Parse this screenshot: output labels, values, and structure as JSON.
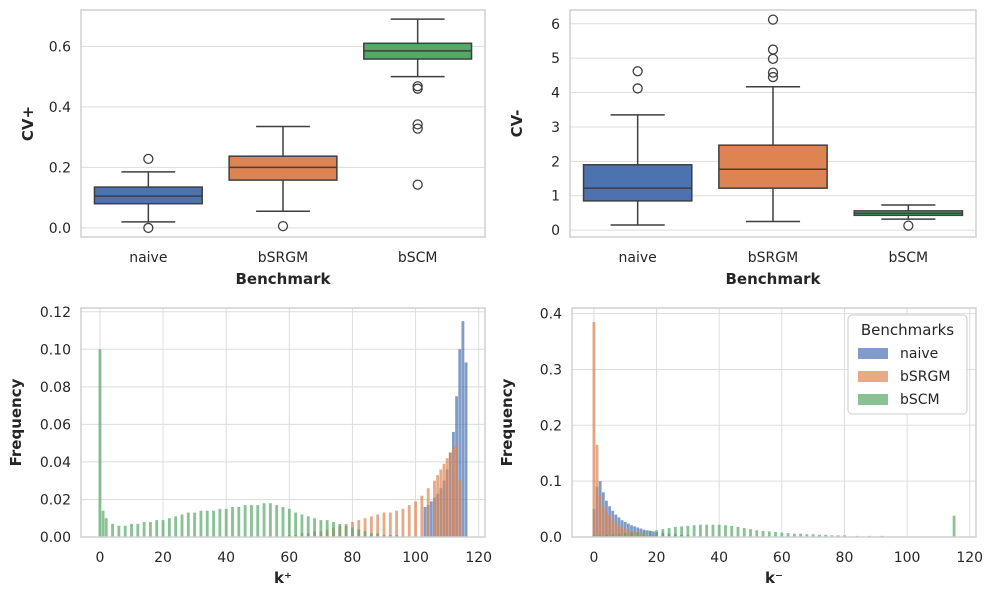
{
  "chart_data": [
    {
      "id": "cv-plus",
      "type": "box",
      "xlabel": "Benchmark",
      "ylabel": "CV+",
      "ylim": [
        -0.03,
        0.72
      ],
      "yticks": [
        "0.0",
        "0.2",
        "0.4",
        "0.6"
      ],
      "ytick_values": [
        0,
        0.2,
        0.4,
        0.6
      ],
      "categories": [
        "naive",
        "bSRGM",
        "bSCM"
      ],
      "boxes": [
        {
          "category": "naive",
          "whislo": 0.02,
          "q1": 0.08,
          "med": 0.105,
          "q3": 0.135,
          "whishi": 0.185,
          "color": "#4c72b0",
          "fliers": [
            0.228,
            0.0
          ]
        },
        {
          "category": "bSRGM",
          "whislo": 0.055,
          "q1": 0.158,
          "med": 0.2,
          "q3": 0.237,
          "whishi": 0.335,
          "color": "#dd8452",
          "fliers": [
            0.006
          ]
        },
        {
          "category": "bSCM",
          "whislo": 0.5,
          "q1": 0.558,
          "med": 0.585,
          "q3": 0.61,
          "whishi": 0.69,
          "color": "#55a868",
          "fliers": [
            0.468,
            0.46,
            0.342,
            0.328,
            0.143
          ]
        }
      ]
    },
    {
      "id": "cv-minus",
      "type": "box",
      "xlabel": "Benchmark",
      "ylabel": "CV-",
      "ylim": [
        -0.2,
        6.4
      ],
      "yticks": [
        "0",
        "1",
        "2",
        "3",
        "4",
        "5",
        "6"
      ],
      "ytick_values": [
        0,
        1,
        2,
        3,
        4,
        5,
        6
      ],
      "categories": [
        "naive",
        "bSRGM",
        "bSCM"
      ],
      "boxes": [
        {
          "category": "naive",
          "whislo": 0.15,
          "q1": 0.85,
          "med": 1.22,
          "q3": 1.9,
          "whishi": 3.35,
          "color": "#4c72b0",
          "fliers": [
            4.12,
            4.62
          ]
        },
        {
          "category": "bSRGM",
          "whislo": 0.25,
          "q1": 1.22,
          "med": 1.77,
          "q3": 2.47,
          "whishi": 4.17,
          "color": "#dd8452",
          "fliers": [
            4.45,
            4.58,
            4.98,
            5.25,
            6.12
          ]
        },
        {
          "category": "bSCM",
          "whislo": 0.32,
          "q1": 0.43,
          "med": 0.49,
          "q3": 0.56,
          "whishi": 0.73,
          "color": "#55a868",
          "fliers": [
            0.13
          ]
        }
      ]
    },
    {
      "id": "k-plus-hist",
      "type": "histogram",
      "xlabel": "k⁺",
      "ylabel": "Frequency",
      "xlim": [
        -6,
        122
      ],
      "ylim": [
        0,
        0.122
      ],
      "xticks": [
        "0",
        "20",
        "40",
        "60",
        "80",
        "100",
        "120"
      ],
      "xtick_values": [
        0,
        20,
        40,
        60,
        80,
        100,
        120
      ],
      "yticks": [
        "0.00",
        "0.02",
        "0.04",
        "0.06",
        "0.08",
        "0.10",
        "0.12"
      ],
      "ytick_values": [
        0,
        0.02,
        0.04,
        0.06,
        0.08,
        0.1,
        0.12
      ],
      "series": [
        {
          "name": "naive",
          "color": "#4c72b0",
          "x": [
            103,
            104,
            105,
            106,
            107,
            108,
            109,
            110,
            111,
            112,
            113,
            114,
            115,
            116
          ],
          "values": [
            0.016,
            0.017,
            0.019,
            0.021,
            0.023,
            0.026,
            0.03,
            0.036,
            0.045,
            0.056,
            0.075,
            0.1,
            0.115,
            0.093
          ]
        },
        {
          "name": "bSRGM",
          "color": "#dd8452",
          "x": [
            60,
            62,
            64,
            66,
            68,
            70,
            72,
            74,
            76,
            78,
            80,
            82,
            84,
            86,
            88,
            90,
            92,
            94,
            96,
            98,
            100,
            102,
            104,
            106,
            107,
            108,
            109,
            110,
            111,
            112,
            113,
            114
          ],
          "values": [
            0.001,
            0.001,
            0.002,
            0.002,
            0.003,
            0.003,
            0.004,
            0.005,
            0.006,
            0.007,
            0.008,
            0.009,
            0.01,
            0.011,
            0.012,
            0.013,
            0.013,
            0.014,
            0.015,
            0.017,
            0.019,
            0.022,
            0.026,
            0.03,
            0.033,
            0.036,
            0.039,
            0.042,
            0.045,
            0.048,
            0.049,
            0.03
          ]
        },
        {
          "name": "bSCM",
          "color": "#55a868",
          "x": [
            0,
            1,
            2,
            4,
            6,
            8,
            10,
            12,
            14,
            16,
            18,
            20,
            22,
            24,
            26,
            28,
            30,
            32,
            34,
            36,
            38,
            40,
            42,
            44,
            46,
            48,
            50,
            52,
            54,
            56,
            58,
            60,
            62,
            64,
            66,
            68,
            70,
            72,
            74,
            76,
            78,
            80,
            82,
            84,
            86,
            88,
            90,
            92,
            94,
            96
          ],
          "values": [
            0.1,
            0.014,
            0.01,
            0.007,
            0.006,
            0.006,
            0.007,
            0.007,
            0.008,
            0.008,
            0.009,
            0.009,
            0.01,
            0.011,
            0.012,
            0.013,
            0.013,
            0.014,
            0.014,
            0.014,
            0.015,
            0.015,
            0.016,
            0.016,
            0.017,
            0.017,
            0.017,
            0.018,
            0.018,
            0.017,
            0.016,
            0.015,
            0.013,
            0.012,
            0.011,
            0.01,
            0.009,
            0.009,
            0.008,
            0.007,
            0.006,
            0.005,
            0.004,
            0.003,
            0.002,
            0.002,
            0.001,
            0.001,
            0.001,
            0.0005
          ]
        }
      ]
    },
    {
      "id": "k-minus-hist",
      "type": "histogram",
      "xlabel": "k⁻",
      "ylabel": "Frequency",
      "xlim": [
        -7,
        122
      ],
      "ylim": [
        0,
        0.41
      ],
      "xticks": [
        "0",
        "20",
        "40",
        "60",
        "80",
        "100",
        "120"
      ],
      "xtick_values": [
        0,
        20,
        40,
        60,
        80,
        100,
        120
      ],
      "yticks": [
        "0.0",
        "0.1",
        "0.2",
        "0.3",
        "0.4"
      ],
      "ytick_values": [
        0,
        0.1,
        0.2,
        0.3,
        0.4
      ],
      "series": [
        {
          "name": "naive",
          "color": "#4c72b0",
          "x": [
            0,
            1,
            2,
            3,
            4,
            5,
            6,
            7,
            8,
            9,
            10,
            11,
            12,
            13,
            14,
            15,
            16,
            17,
            18,
            19,
            20,
            22,
            24,
            26,
            28,
            30
          ],
          "values": [
            0.05,
            0.09,
            0.1,
            0.08,
            0.065,
            0.055,
            0.047,
            0.04,
            0.035,
            0.03,
            0.027,
            0.024,
            0.021,
            0.019,
            0.017,
            0.015,
            0.013,
            0.012,
            0.011,
            0.01,
            0.009,
            0.007,
            0.006,
            0.005,
            0.004,
            0.003
          ]
        },
        {
          "name": "bSRGM",
          "color": "#dd8452",
          "x": [
            0,
            1,
            2,
            3,
            4,
            5,
            6,
            7,
            8,
            9,
            10,
            11,
            12,
            13,
            14,
            15,
            16,
            18,
            20,
            22
          ],
          "values": [
            0.385,
            0.165,
            0.075,
            0.055,
            0.045,
            0.038,
            0.03,
            0.025,
            0.02,
            0.017,
            0.014,
            0.012,
            0.01,
            0.009,
            0.008,
            0.007,
            0.006,
            0.004,
            0.003,
            0.002
          ]
        },
        {
          "name": "bSCM",
          "color": "#55a868",
          "x": [
            0,
            2,
            4,
            6,
            8,
            10,
            12,
            14,
            16,
            18,
            20,
            22,
            24,
            26,
            28,
            30,
            32,
            34,
            36,
            38,
            40,
            42,
            44,
            46,
            48,
            50,
            52,
            54,
            56,
            58,
            60,
            62,
            64,
            66,
            68,
            70,
            72,
            74,
            76,
            78,
            80,
            84,
            88,
            92,
            96,
            100,
            104,
            108,
            112,
            115
          ],
          "values": [
            0.003,
            0.003,
            0.004,
            0.005,
            0.006,
            0.007,
            0.008,
            0.009,
            0.01,
            0.011,
            0.012,
            0.014,
            0.016,
            0.018,
            0.019,
            0.02,
            0.021,
            0.022,
            0.022,
            0.022,
            0.022,
            0.021,
            0.02,
            0.018,
            0.016,
            0.014,
            0.012,
            0.011,
            0.01,
            0.009,
            0.008,
            0.007,
            0.006,
            0.006,
            0.005,
            0.005,
            0.004,
            0.004,
            0.003,
            0.003,
            0.003,
            0.002,
            0.002,
            0.002,
            0.001,
            0.001,
            0.001,
            0.001,
            0.001,
            0.038
          ]
        }
      ]
    }
  ],
  "legend": {
    "title": "Benchmarks",
    "location": "upper right",
    "entries": [
      {
        "label": "naive",
        "color": "#4c72b0"
      },
      {
        "label": "bSRGM",
        "color": "#dd8452"
      },
      {
        "label": "bSCM",
        "color": "#55a868"
      }
    ]
  }
}
